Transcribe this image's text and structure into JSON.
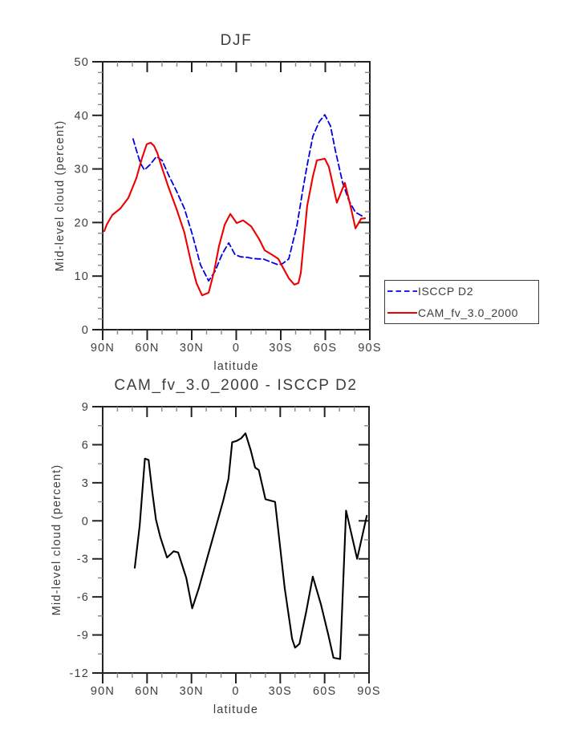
{
  "figure": {
    "background": "#ffffff",
    "axis_color": "#222222",
    "minor_tick_color": "#888888",
    "text_color": "#3d3d3d"
  },
  "chart_data": [
    {
      "id": "top",
      "type": "line",
      "title": "DJF",
      "xlabel": "latitude",
      "ylabel": "Mid-level cloud (percent)",
      "xlim": [
        90,
        -90
      ],
      "ylim": [
        0,
        50
      ],
      "x_major_ticks": [
        90,
        60,
        30,
        0,
        -30,
        -60,
        -90
      ],
      "x_tick_labels": [
        "90N",
        "60N",
        "30N",
        "0",
        "30S",
        "60S",
        "90S"
      ],
      "x_minor_step": 10,
      "y_major_step": 10,
      "y_minor_step": 2,
      "grid": false,
      "legend_position": "outside-right",
      "series": [
        {
          "name": "ISCCP D2",
          "color": "#0000e8",
          "style": "dashed",
          "points": [
            [
              69.5,
              35.6
            ],
            [
              67.3,
              33.5
            ],
            [
              64.6,
              31.1
            ],
            [
              61.9,
              29.8
            ],
            [
              58.1,
              30.8
            ],
            [
              53.8,
              32.3
            ],
            [
              50.0,
              31.6
            ],
            [
              45.7,
              28.9
            ],
            [
              40.3,
              25.9
            ],
            [
              34.9,
              22.6
            ],
            [
              29.5,
              17.7
            ],
            [
              24.1,
              12.1
            ],
            [
              18.6,
              9.1
            ],
            [
              14.3,
              10.9
            ],
            [
              9.5,
              14.1
            ],
            [
              5.1,
              16.2
            ],
            [
              0.8,
              14.0
            ],
            [
              -3.0,
              13.6
            ],
            [
              -7.3,
              13.5
            ],
            [
              -11.1,
              13.3
            ],
            [
              -14.9,
              13.2
            ],
            [
              -18.1,
              13.2
            ],
            [
              -23.5,
              12.6
            ],
            [
              -28.4,
              12.1
            ],
            [
              -31.1,
              12.3
            ],
            [
              -35.4,
              13.2
            ],
            [
              -38.1,
              16.3
            ],
            [
              -40.8,
              19.3
            ],
            [
              -42.4,
              21.9
            ],
            [
              -45.1,
              26.5
            ],
            [
              -48.0,
              31.0
            ],
            [
              -51.6,
              36.1
            ],
            [
              -55.9,
              38.8
            ],
            [
              -59.7,
              40.1
            ],
            [
              -63.5,
              38.0
            ],
            [
              -66.8,
              33.4
            ],
            [
              -71.6,
              27.5
            ],
            [
              -75.9,
              24.1
            ],
            [
              -80.3,
              21.9
            ],
            [
              -85.7,
              21.1
            ]
          ]
        },
        {
          "name": "CAM_fv_3.0_2000",
          "color": "#ee0000",
          "style": "solid",
          "points": [
            [
              88.9,
              18.4
            ],
            [
              87.3,
              19.6
            ],
            [
              83.5,
              21.4
            ],
            [
              78.1,
              22.6
            ],
            [
              72.7,
              24.6
            ],
            [
              67.3,
              28.3
            ],
            [
              63.5,
              32.0
            ],
            [
              60.3,
              34.6
            ],
            [
              57.6,
              34.9
            ],
            [
              55.4,
              34.3
            ],
            [
              53.2,
              33.0
            ],
            [
              51.1,
              31.1
            ],
            [
              45.7,
              26.6
            ],
            [
              40.3,
              22.6
            ],
            [
              34.9,
              18.1
            ],
            [
              30.5,
              12.6
            ],
            [
              26.8,
              8.7
            ],
            [
              23.0,
              6.4
            ],
            [
              18.6,
              6.9
            ],
            [
              14.9,
              10.9
            ],
            [
              11.6,
              15.6
            ],
            [
              7.8,
              19.6
            ],
            [
              4.0,
              21.6
            ],
            [
              -0.3,
              19.9
            ],
            [
              -4.6,
              20.4
            ],
            [
              -10.0,
              19.3
            ],
            [
              -15.4,
              16.9
            ],
            [
              -19.2,
              14.8
            ],
            [
              -24.6,
              13.9
            ],
            [
              -28.4,
              13.2
            ],
            [
              -31.1,
              11.8
            ],
            [
              -35.4,
              9.6
            ],
            [
              -39.2,
              8.4
            ],
            [
              -41.9,
              8.7
            ],
            [
              -43.5,
              10.6
            ],
            [
              -47.8,
              23.1
            ],
            [
              -51.6,
              28.6
            ],
            [
              -54.3,
              31.6
            ],
            [
              -59.7,
              31.9
            ],
            [
              -62.4,
              30.4
            ],
            [
              -65.1,
              27.1
            ],
            [
              -67.8,
              23.7
            ],
            [
              -73.2,
              27.4
            ],
            [
              -77.0,
              23.1
            ],
            [
              -80.3,
              18.9
            ],
            [
              -84.1,
              20.7
            ],
            [
              -86.8,
              20.8
            ]
          ]
        }
      ]
    },
    {
      "id": "bottom",
      "type": "line",
      "title": "CAM_fv_3.0_2000 - ISCCP D2",
      "xlabel": "latitude",
      "ylabel": "Mid-level cloud (percent)",
      "xlim": [
        90,
        -90
      ],
      "ylim": [
        -12,
        9
      ],
      "x_major_ticks": [
        90,
        60,
        30,
        0,
        -30,
        -60,
        -90
      ],
      "x_tick_labels": [
        "90N",
        "60N",
        "30N",
        "0",
        "30S",
        "60S",
        "90S"
      ],
      "x_minor_step": 10,
      "y_major_step": 3,
      "y_minor_step": 1.5,
      "grid": false,
      "legend_position": "none",
      "series": [
        {
          "name": "CAM_fv_3.0_2000 minus ISCCP D2",
          "color": "#000000",
          "style": "solid",
          "points": [
            [
              68.3,
              -3.7
            ],
            [
              65.0,
              -0.4
            ],
            [
              61.5,
              4.9
            ],
            [
              59.0,
              4.8
            ],
            [
              56.5,
              2.3
            ],
            [
              54.0,
              0.1
            ],
            [
              51.0,
              -1.3
            ],
            [
              46.5,
              -2.9
            ],
            [
              42.0,
              -2.4
            ],
            [
              39.0,
              -2.5
            ],
            [
              33.5,
              -4.5
            ],
            [
              29.5,
              -6.9
            ],
            [
              25.0,
              -5.3
            ],
            [
              19.5,
              -3.0
            ],
            [
              14.0,
              -0.7
            ],
            [
              8.5,
              1.6
            ],
            [
              5.0,
              3.3
            ],
            [
              2.5,
              6.2
            ],
            [
              -0.5,
              6.3
            ],
            [
              -3.5,
              6.5
            ],
            [
              -6.5,
              6.9
            ],
            [
              -10.0,
              5.6
            ],
            [
              -13.0,
              4.2
            ],
            [
              -15.5,
              4.0
            ],
            [
              -20.0,
              1.7
            ],
            [
              -26.5,
              1.5
            ],
            [
              -33.0,
              -5.3
            ],
            [
              -38.0,
              -9.3
            ],
            [
              -40.0,
              -10.0
            ],
            [
              -43.0,
              -9.7
            ],
            [
              -47.5,
              -7.2
            ],
            [
              -52.0,
              -4.4
            ],
            [
              -57.5,
              -6.6
            ],
            [
              -62.5,
              -9.0
            ],
            [
              -66.0,
              -10.8
            ],
            [
              -70.5,
              -10.9
            ],
            [
              -74.5,
              0.8
            ],
            [
              -82.0,
              -3.0
            ],
            [
              -88.5,
              0.4
            ]
          ]
        }
      ]
    }
  ],
  "legend": {
    "entries": [
      {
        "label": "ISCCP D2"
      },
      {
        "label": "CAM_fv_3.0_2000"
      }
    ]
  }
}
